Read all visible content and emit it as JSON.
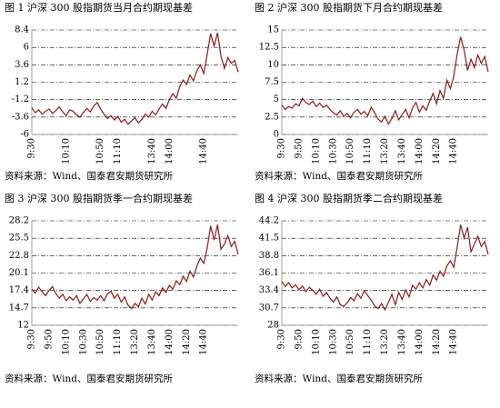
{
  "chart_data": [
    {
      "type": "line",
      "title": "图 1 沪深 300 股指期货当月合约期现基差",
      "source": "资料来源：Wind、国泰君安期货研究所",
      "categories": [
        "9:30",
        null,
        null,
        null,
        null,
        null,
        null,
        null,
        null,
        null,
        "10:10",
        null,
        null,
        null,
        null,
        null,
        null,
        null,
        null,
        null,
        "10:50",
        null,
        null,
        null,
        null,
        "11:10",
        null,
        null,
        null,
        null,
        null,
        null,
        null,
        null,
        null,
        "13:40",
        null,
        null,
        null,
        null,
        "14:00",
        null,
        null,
        null,
        null,
        null,
        null,
        null,
        null,
        null,
        "14:40",
        null,
        null,
        null,
        null,
        null,
        null,
        null,
        null,
        null,
        null
      ],
      "series": [
        {
          "color": "#8b1a1a",
          "values": [
            -2.3,
            -3.0,
            -2.6,
            -3.2,
            -2.8,
            -2.5,
            -3.1,
            -2.7,
            -2.2,
            -2.9,
            -3.4,
            -2.6,
            -2.8,
            -3.3,
            -3.6,
            -3.0,
            -2.4,
            -2.9,
            -2.1,
            -1.6,
            -2.5,
            -3.2,
            -3.8,
            -3.4,
            -4.0,
            -3.5,
            -4.3,
            -3.9,
            -4.6,
            -4.1,
            -3.7,
            -4.4,
            -3.9,
            -3.2,
            -3.6,
            -2.8,
            -3.3,
            -2.5,
            -1.8,
            -2.4,
            -1.2,
            -0.4,
            -1.0,
            0.6,
            1.5,
            0.9,
            2.2,
            1.4,
            2.8,
            3.6,
            2.4,
            5.1,
            7.9,
            6.2,
            8.0,
            4.8,
            3.1,
            4.6,
            3.8,
            4.2,
            2.6
          ]
        }
      ],
      "ylim": [
        -6,
        8.4
      ],
      "yticks": [
        -6,
        -3.6,
        -1.2,
        1.2,
        3.6,
        6,
        8.4
      ],
      "grid": true
    },
    {
      "type": "line",
      "title": "图 2 沪深 300 股指期货下月合约期现基差",
      "source": "资料来源：Wind、国泰君安期货研究所",
      "categories": [
        "9:30",
        null,
        null,
        null,
        null,
        "9:50",
        null,
        null,
        null,
        null,
        "10:10",
        null,
        null,
        null,
        null,
        "10:30",
        null,
        null,
        null,
        null,
        "10:50",
        null,
        null,
        null,
        null,
        "11:10",
        null,
        null,
        null,
        null,
        "13:20",
        null,
        null,
        null,
        null,
        "13:40",
        null,
        null,
        null,
        null,
        "14:00",
        null,
        null,
        null,
        null,
        "14:20",
        null,
        null,
        null,
        null,
        "14:40",
        null,
        null,
        null,
        null,
        null,
        null,
        null,
        null,
        null,
        null
      ],
      "series": [
        {
          "color": "#8b1a1a",
          "values": [
            4.2,
            3.6,
            4.0,
            3.8,
            4.4,
            4.1,
            5.2,
            4.6,
            4.3,
            4.8,
            4.0,
            4.5,
            3.9,
            4.2,
            3.6,
            3.1,
            2.8,
            3.4,
            2.6,
            3.0,
            2.4,
            3.2,
            3.6,
            2.9,
            3.3,
            2.7,
            3.9,
            3.1,
            2.2,
            1.8,
            2.6,
            1.5,
            2.3,
            3.4,
            2.1,
            2.9,
            3.6,
            2.4,
            3.8,
            4.6,
            3.2,
            4.1,
            3.5,
            4.8,
            5.9,
            4.4,
            6.3,
            5.2,
            7.8,
            6.6,
            8.4,
            11.6,
            14.0,
            12.1,
            9.2,
            10.8,
            9.6,
            11.4,
            10.2,
            11.2,
            9.0
          ]
        }
      ],
      "ylim": [
        0,
        15
      ],
      "yticks": [
        0,
        2.5,
        5,
        7.5,
        10,
        12.5,
        15
      ],
      "grid": true
    },
    {
      "type": "line",
      "title": "图 3 沪深 300 股指期货季一合约期现基差",
      "source": "资料来源：Wind、国泰君安期货研究所",
      "categories": [
        "9:30",
        null,
        null,
        null,
        null,
        "9:50",
        null,
        null,
        null,
        null,
        "10:10",
        null,
        null,
        null,
        null,
        "10:30",
        null,
        null,
        null,
        null,
        "10:50",
        null,
        null,
        null,
        null,
        "11:10",
        null,
        null,
        null,
        null,
        "13:20",
        null,
        null,
        null,
        null,
        "13:40",
        null,
        null,
        null,
        null,
        "14:00",
        null,
        null,
        null,
        null,
        "14:20",
        null,
        null,
        null,
        null,
        "14:40",
        null,
        null,
        null,
        null,
        null,
        null,
        null,
        null,
        null,
        null
      ],
      "series": [
        {
          "color": "#8b1a1a",
          "values": [
            17.6,
            17.0,
            17.9,
            17.2,
            16.6,
            17.4,
            18.0,
            16.9,
            16.2,
            16.8,
            15.8,
            16.4,
            15.9,
            16.6,
            15.4,
            16.1,
            16.8,
            15.7,
            16.3,
            15.9,
            16.6,
            15.8,
            16.9,
            17.3,
            16.2,
            16.8,
            15.6,
            16.4,
            15.1,
            14.6,
            15.4,
            14.9,
            16.2,
            15.3,
            16.8,
            15.9,
            17.2,
            16.6,
            17.8,
            17.1,
            18.2,
            17.6,
            18.9,
            18.3,
            19.6,
            18.8,
            20.4,
            19.5,
            21.2,
            22.4,
            21.6,
            24.0,
            27.4,
            25.2,
            27.6,
            23.8,
            24.6,
            25.9,
            24.2,
            25.0,
            23.0
          ]
        }
      ],
      "ylim": [
        12,
        28.2
      ],
      "yticks": [
        12,
        14.7,
        17.4,
        20.1,
        22.8,
        25.5,
        28.2
      ],
      "grid": true
    },
    {
      "type": "line",
      "title": "图 4 沪深 300 股指期货季二合约期现基差",
      "source": "资料来源：Wind、国泰君安期货研究所",
      "categories": [
        "9:30",
        null,
        null,
        null,
        null,
        "9:50",
        null,
        null,
        null,
        null,
        "10:10",
        null,
        null,
        null,
        null,
        "10:30",
        null,
        null,
        null,
        null,
        "10:50",
        null,
        null,
        null,
        null,
        "11:10",
        null,
        null,
        null,
        null,
        "13:20",
        null,
        null,
        null,
        null,
        "13:40",
        null,
        null,
        null,
        null,
        "14:00",
        null,
        null,
        null,
        null,
        "14:20",
        null,
        null,
        null,
        null,
        "14:40",
        null,
        null,
        null,
        null,
        null,
        null,
        null,
        null,
        null,
        null
      ],
      "series": [
        {
          "color": "#8b1a1a",
          "values": [
            34.8,
            34.0,
            34.6,
            33.8,
            34.3,
            33.5,
            34.1,
            33.2,
            33.9,
            33.4,
            32.8,
            33.6,
            32.5,
            33.1,
            32.2,
            31.6,
            32.4,
            31.2,
            30.9,
            31.5,
            32.3,
            31.8,
            32.9,
            32.2,
            33.4,
            32.6,
            31.9,
            31.0,
            30.6,
            31.4,
            30.4,
            31.6,
            32.8,
            31.2,
            33.1,
            32.0,
            33.5,
            32.4,
            34.2,
            33.6,
            34.6,
            33.8,
            35.1,
            34.2,
            35.8,
            35.0,
            36.4,
            35.6,
            37.2,
            38.0,
            37.0,
            40.2,
            43.6,
            41.5,
            43.2,
            39.4,
            40.6,
            41.8,
            40.2,
            41.0,
            39.0
          ]
        }
      ],
      "ylim": [
        28,
        44.2
      ],
      "yticks": [
        28,
        30.7,
        33.4,
        36.1,
        38.8,
        41.5,
        44.2
      ],
      "grid": true
    }
  ]
}
